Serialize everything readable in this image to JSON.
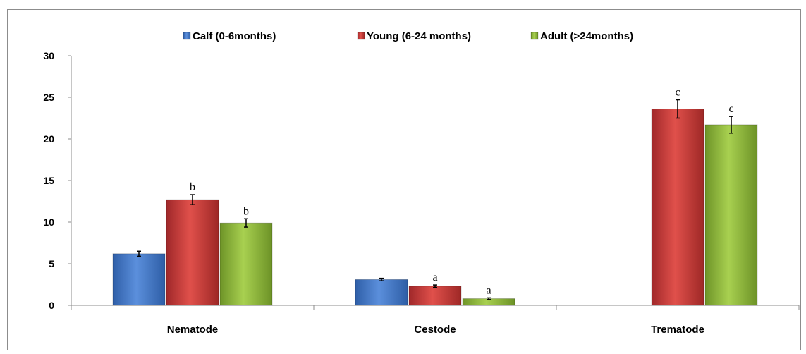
{
  "chart_data": {
    "type": "bar",
    "categories": [
      "Nematode",
      "Cestode",
      "Trematode"
    ],
    "ylim": [
      0,
      30
    ],
    "yticks": [
      0,
      5,
      10,
      15,
      20,
      25,
      30
    ],
    "legend_position": "top",
    "grid": false,
    "series": [
      {
        "name": "Calf (0-6months)",
        "color": "#3f74c4",
        "values": [
          6.2,
          3.1,
          null
        ],
        "errors": [
          0.3,
          0.15,
          null
        ],
        "labels": [
          "",
          "",
          ""
        ]
      },
      {
        "name": "Young (6-24 months)",
        "color": "#c23a36",
        "values": [
          12.7,
          2.3,
          23.6
        ],
        "errors": [
          0.6,
          0.15,
          1.1
        ],
        "labels": [
          "b",
          "a",
          "c"
        ]
      },
      {
        "name": "Adult (>24months)",
        "color": "#8cb43c",
        "values": [
          9.9,
          0.8,
          21.7
        ],
        "errors": [
          0.5,
          0.1,
          1.0
        ],
        "labels": [
          "b",
          "a",
          "c"
        ]
      }
    ]
  }
}
